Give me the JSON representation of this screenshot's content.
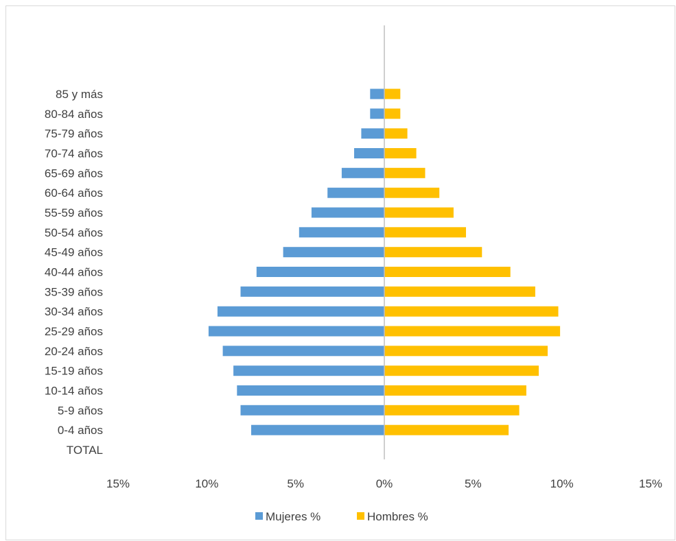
{
  "chart_data": {
    "type": "bar",
    "orientation": "horizontal",
    "categories": [
      "TOTAL",
      "0-4 años",
      "5-9 años",
      "10-14 años",
      "15-19 años",
      "20-24 años",
      "25-29 años",
      "30-34 años",
      "35-39 años",
      "40-44 años",
      "45-49 años",
      "50-54 años",
      "55-59 años",
      "60-64 años",
      "65-69 años",
      "70-74 años",
      "75-79 años",
      "80-84 años",
      "85 y más"
    ],
    "series": [
      {
        "name": "Mujeres %",
        "color": "#5b9bd5",
        "values": [
          0,
          -7.5,
          -8.1,
          -8.3,
          -8.5,
          -9.1,
          -9.9,
          -9.4,
          -8.1,
          -7.2,
          -5.7,
          -4.8,
          -4.1,
          -3.2,
          -2.4,
          -1.7,
          -1.3,
          -0.8,
          -0.8
        ]
      },
      {
        "name": "Hombres %",
        "color": "#ffc000",
        "values": [
          0,
          7.0,
          7.6,
          8.0,
          8.7,
          9.2,
          9.9,
          9.8,
          8.5,
          7.1,
          5.5,
          4.6,
          3.9,
          3.1,
          2.3,
          1.8,
          1.3,
          0.9,
          0.9
        ]
      }
    ],
    "xlim": [
      -15,
      15
    ],
    "xticks": [
      -15,
      -10,
      -5,
      0,
      5,
      10,
      15
    ],
    "xtick_labels": [
      "15%",
      "10%",
      "5%",
      "0%",
      "5%",
      "10%",
      "15%"
    ],
    "title": "",
    "xlabel": "",
    "ylabel": "",
    "grid": false,
    "legend_position": "bottom"
  }
}
